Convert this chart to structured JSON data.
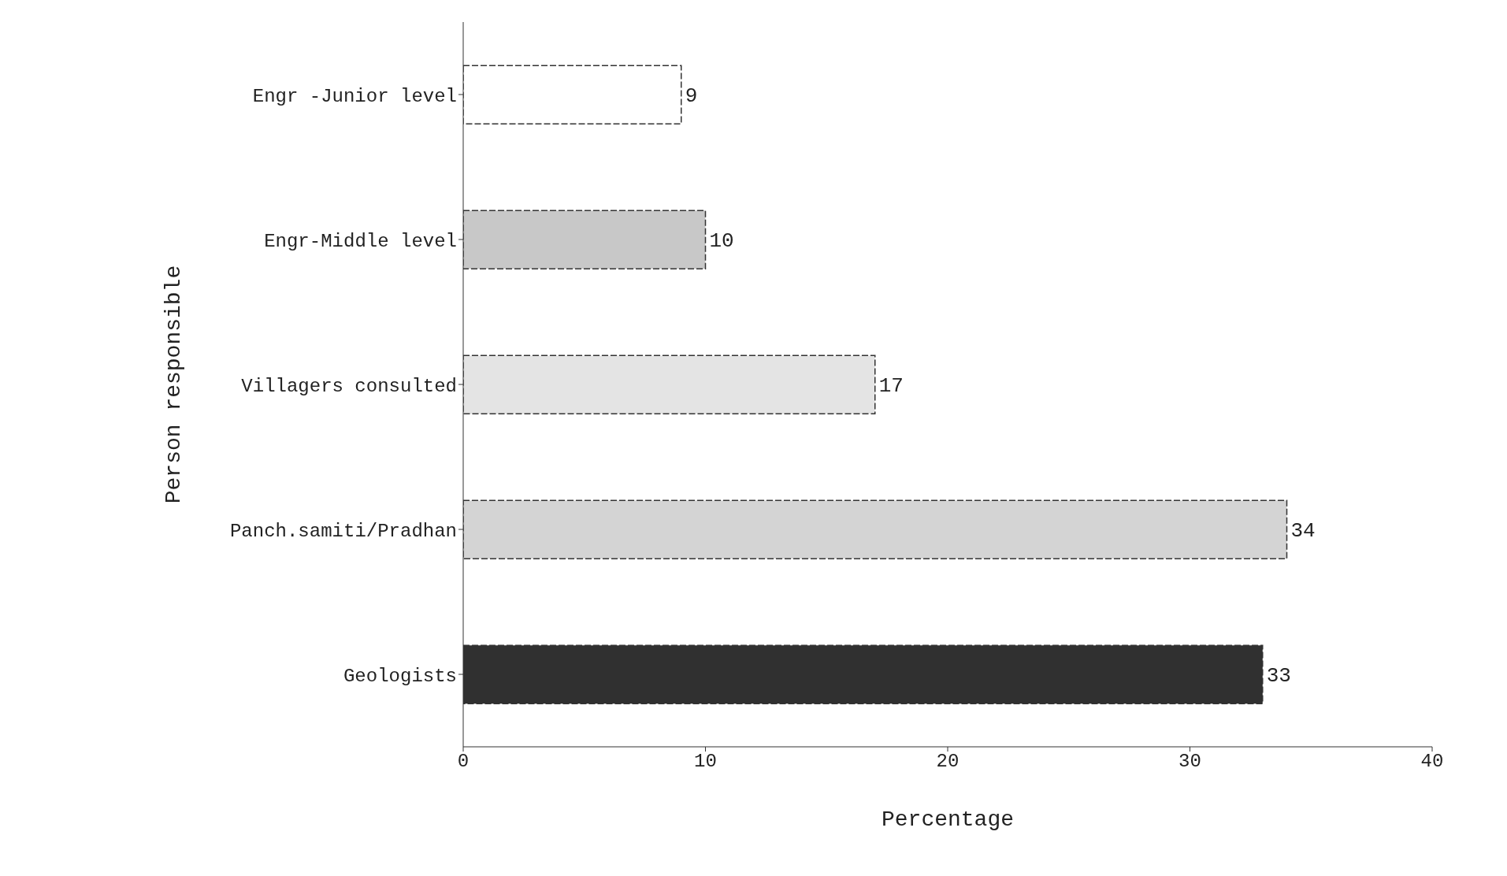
{
  "chart_data": {
    "type": "bar",
    "orientation": "horizontal",
    "ylabel": "Person responsible",
    "xlabel": "Percentage",
    "categories": [
      "Engr -Junior level",
      "Engr-Middle level",
      "Villagers consulted",
      "Panch.samiti/Pradhan",
      "Geologists"
    ],
    "values": [
      9,
      10,
      17,
      34,
      33
    ],
    "data_labels": true,
    "colors": [
      "#ffffff",
      "#c8c8c8",
      "#e4e4e4",
      "#d4d4d4",
      "#303030"
    ],
    "xlim": [
      0,
      40
    ],
    "xticks": [
      0,
      10,
      20,
      30,
      40
    ],
    "grid": false
  }
}
